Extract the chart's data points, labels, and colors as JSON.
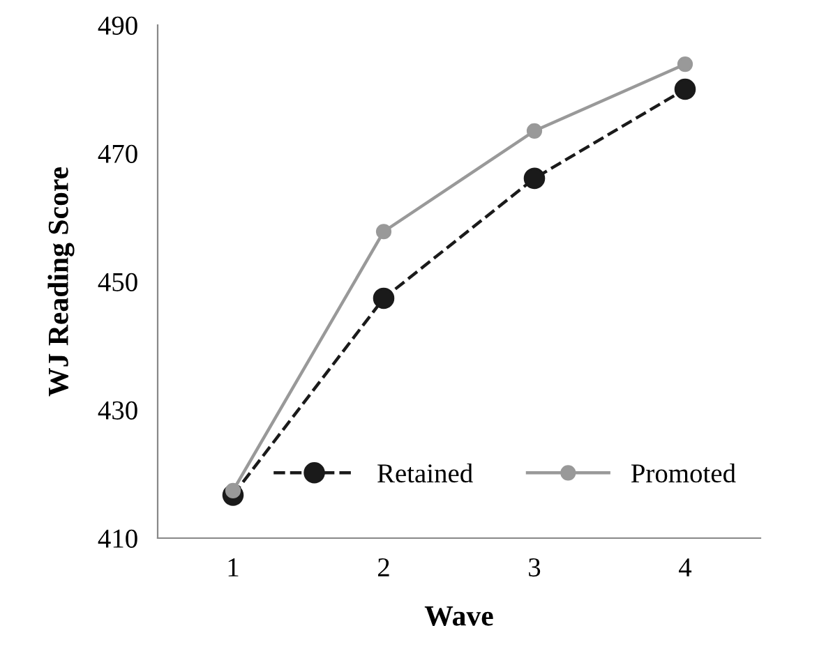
{
  "chart_data": {
    "type": "line",
    "xlabel": "Wave",
    "ylabel": "WJ Reading Score",
    "categories": [
      "1",
      "2",
      "3",
      "4"
    ],
    "series": [
      {
        "name": "Retained",
        "color": "#1a1a1a",
        "line_style": "dashed",
        "marker": "circle",
        "values": [
          416.7,
          447.4,
          466.1,
          480.0
        ]
      },
      {
        "name": "Promoted",
        "color": "#999999",
        "line_style": "solid",
        "marker": "circle",
        "values": [
          417.4,
          457.8,
          473.5,
          483.9
        ]
      }
    ],
    "ylim": [
      410,
      490
    ],
    "yticks": [
      410,
      430,
      450,
      470,
      490
    ],
    "grid": false,
    "legend": "bottom right"
  }
}
